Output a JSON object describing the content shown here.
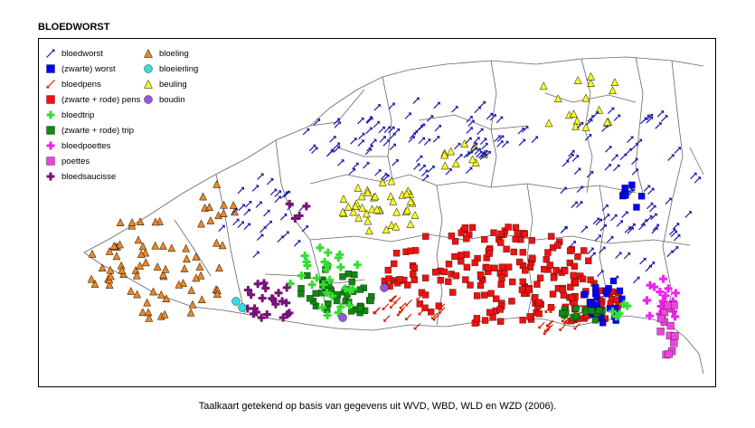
{
  "map": {
    "title": "BLOEDWORST",
    "caption": "Taalkaart getekend op basis van gegevens uit WVD, WBD, WLD en WZD (2006).",
    "legend": [
      {
        "id": "bloedworst",
        "label": "bloedworst",
        "symbol": "arrow",
        "color": "#1a1aa6"
      },
      {
        "id": "zwarte-worst",
        "label": "(zwarte) worst",
        "symbol": "square",
        "color": "#0000ff"
      },
      {
        "id": "bloedpens",
        "label": "bloedpens",
        "symbol": "arrow-down",
        "color": "#cc2200"
      },
      {
        "id": "zwarte-rode-pens",
        "label": "(zwarte + rode) pens",
        "symbol": "square",
        "color": "#ee1111"
      },
      {
        "id": "bloedtrip",
        "label": "bloedtrip",
        "symbol": "cross",
        "color": "#33dd33"
      },
      {
        "id": "zwarte-rode-trip",
        "label": "(zwarte + rode) trip",
        "symbol": "square",
        "color": "#118811"
      },
      {
        "id": "bloedpoettes",
        "label": "bloedpoettes",
        "symbol": "cross",
        "color": "#ee22ee"
      },
      {
        "id": "poettes",
        "label": "poettes",
        "symbol": "square",
        "color": "#ee44dd"
      },
      {
        "id": "bloedsaucisse",
        "label": "bloedsaucisse",
        "symbol": "cross",
        "color": "#771177"
      },
      {
        "id": "bloeling",
        "label": "bloeling",
        "symbol": "triangle",
        "color": "#ee8822"
      },
      {
        "id": "bloeierling",
        "label": "bloeierling",
        "symbol": "circle",
        "color": "#33dddd"
      },
      {
        "id": "beuling",
        "label": "beuling",
        "symbol": "triangle",
        "color": "#ffff22"
      },
      {
        "id": "boudin",
        "label": "boudin",
        "symbol": "circle",
        "color": "#9955dd"
      }
    ]
  }
}
